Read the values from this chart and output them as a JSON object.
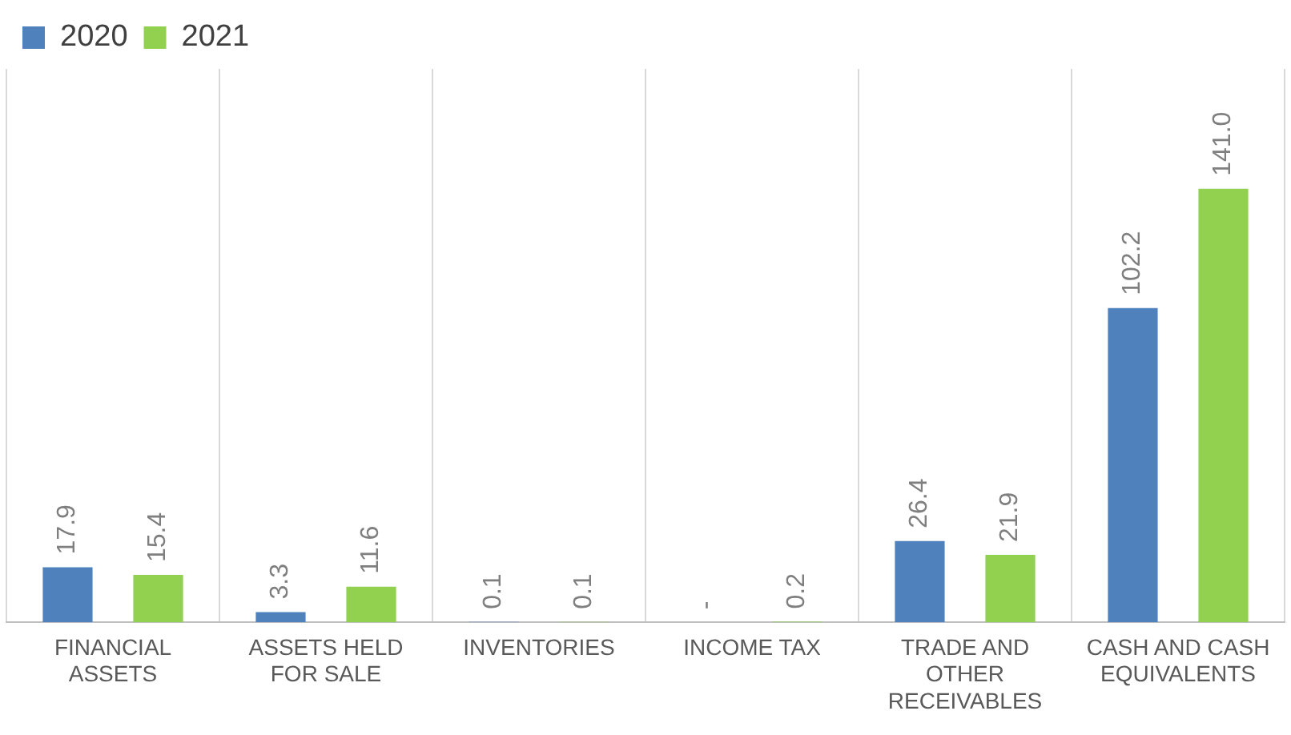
{
  "chart_data": {
    "type": "bar",
    "categories": [
      "FINANCIAL ASSETS",
      "ASSETS HELD FOR SALE",
      "INVENTORIES",
      "INCOME TAX",
      "TRADE AND OTHER RECEIVABLES",
      "CASH AND CASH EQUIVALENTS"
    ],
    "series": [
      {
        "name": "2020",
        "color": "#4f81bd",
        "values": [
          17.9,
          3.3,
          0.1,
          null,
          26.4,
          102.2
        ],
        "value_labels": [
          "17.9",
          "3.3",
          "0.1",
          "-",
          "26.4",
          "102.2"
        ]
      },
      {
        "name": "2021",
        "color": "#92d050",
        "values": [
          15.4,
          11.6,
          0.1,
          0.2,
          21.9,
          141.0
        ],
        "value_labels": [
          "15.4",
          "11.6",
          "0.1",
          "0.2",
          "21.9",
          "141.0"
        ]
      }
    ],
    "grid": "x",
    "legend": "top left"
  }
}
